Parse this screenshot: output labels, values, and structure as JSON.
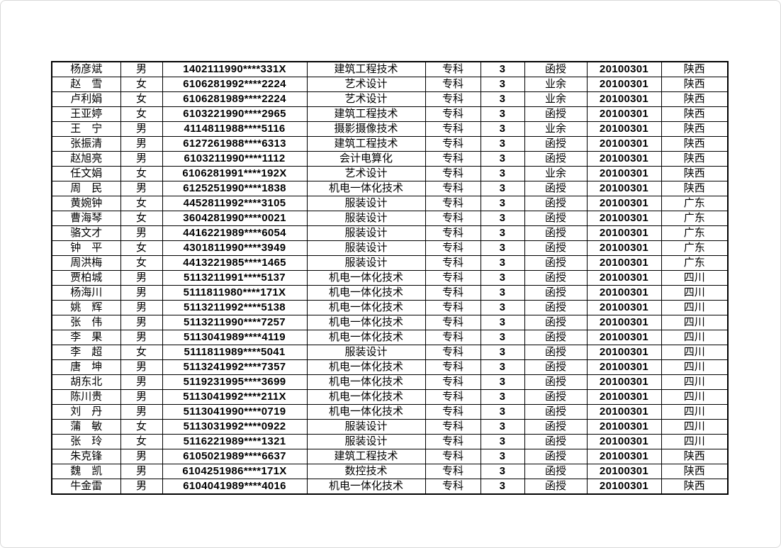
{
  "page": {
    "background_color": "#ffffff",
    "frame_border_color": "#d9d9d9",
    "table_border_color": "#000000",
    "text_color": "#000000"
  },
  "table": {
    "rows": [
      {
        "name": "杨彦斌",
        "gender": "男",
        "id_number": "1402111990****331X",
        "major": "建筑工程技术",
        "level": "专科",
        "years": "3",
        "study_mode": "函授",
        "date": "20100301",
        "province": "陕西"
      },
      {
        "name": "赵　雪",
        "gender": "女",
        "id_number": "6106281992****2224",
        "major": "艺术设计",
        "level": "专科",
        "years": "3",
        "study_mode": "业余",
        "date": "20100301",
        "province": "陕西"
      },
      {
        "name": "卢利娟",
        "gender": "女",
        "id_number": "6106281989****2224",
        "major": "艺术设计",
        "level": "专科",
        "years": "3",
        "study_mode": "业余",
        "date": "20100301",
        "province": "陕西"
      },
      {
        "name": "王亚婷",
        "gender": "女",
        "id_number": "6103221990****2965",
        "major": "建筑工程技术",
        "level": "专科",
        "years": "3",
        "study_mode": "函授",
        "date": "20100301",
        "province": "陕西"
      },
      {
        "name": "王　宁",
        "gender": "男",
        "id_number": "4114811988****5116",
        "major": "摄影摄像技术",
        "level": "专科",
        "years": "3",
        "study_mode": "业余",
        "date": "20100301",
        "province": "陕西"
      },
      {
        "name": "张振清",
        "gender": "男",
        "id_number": "6127261988****6313",
        "major": "建筑工程技术",
        "level": "专科",
        "years": "3",
        "study_mode": "函授",
        "date": "20100301",
        "province": "陕西"
      },
      {
        "name": "赵旭亮",
        "gender": "男",
        "id_number": "6103211990****1112",
        "major": "会计电算化",
        "level": "专科",
        "years": "3",
        "study_mode": "函授",
        "date": "20100301",
        "province": "陕西"
      },
      {
        "name": "任文娟",
        "gender": "女",
        "id_number": "6106281991****192X",
        "major": "艺术设计",
        "level": "专科",
        "years": "3",
        "study_mode": "业余",
        "date": "20100301",
        "province": "陕西"
      },
      {
        "name": "周　民",
        "gender": "男",
        "id_number": "6125251990****1838",
        "major": "机电一体化技术",
        "level": "专科",
        "years": "3",
        "study_mode": "函授",
        "date": "20100301",
        "province": "陕西"
      },
      {
        "name": "黄婉钟",
        "gender": "女",
        "id_number": "4452811992****3105",
        "major": "服装设计",
        "level": "专科",
        "years": "3",
        "study_mode": "函授",
        "date": "20100301",
        "province": "广东"
      },
      {
        "name": "曹海琴",
        "gender": "女",
        "id_number": "3604281990****0021",
        "major": "服装设计",
        "level": "专科",
        "years": "3",
        "study_mode": "函授",
        "date": "20100301",
        "province": "广东"
      },
      {
        "name": "骆文才",
        "gender": "男",
        "id_number": "4416221989****6054",
        "major": "服装设计",
        "level": "专科",
        "years": "3",
        "study_mode": "函授",
        "date": "20100301",
        "province": "广东"
      },
      {
        "name": "钟　平",
        "gender": "女",
        "id_number": "4301811990****3949",
        "major": "服装设计",
        "level": "专科",
        "years": "3",
        "study_mode": "函授",
        "date": "20100301",
        "province": "广东"
      },
      {
        "name": "周洪梅",
        "gender": "女",
        "id_number": "4413221985****1465",
        "major": "服装设计",
        "level": "专科",
        "years": "3",
        "study_mode": "函授",
        "date": "20100301",
        "province": "广东"
      },
      {
        "name": "贾柏城",
        "gender": "男",
        "id_number": "5113211991****5137",
        "major": "机电一体化技术",
        "level": "专科",
        "years": "3",
        "study_mode": "函授",
        "date": "20100301",
        "province": "四川"
      },
      {
        "name": "杨海川",
        "gender": "男",
        "id_number": "5111811980****171X",
        "major": "机电一体化技术",
        "level": "专科",
        "years": "3",
        "study_mode": "函授",
        "date": "20100301",
        "province": "四川"
      },
      {
        "name": "姚　辉",
        "gender": "男",
        "id_number": "5113211992****5138",
        "major": "机电一体化技术",
        "level": "专科",
        "years": "3",
        "study_mode": "函授",
        "date": "20100301",
        "province": "四川"
      },
      {
        "name": "张　伟",
        "gender": "男",
        "id_number": "5113211990****7257",
        "major": "机电一体化技术",
        "level": "专科",
        "years": "3",
        "study_mode": "函授",
        "date": "20100301",
        "province": "四川"
      },
      {
        "name": "李　果",
        "gender": "男",
        "id_number": "5113041989****4119",
        "major": "机电一体化技术",
        "level": "专科",
        "years": "3",
        "study_mode": "函授",
        "date": "20100301",
        "province": "四川"
      },
      {
        "name": "李　超",
        "gender": "女",
        "id_number": "5111811989****5041",
        "major": "服装设计",
        "level": "专科",
        "years": "3",
        "study_mode": "函授",
        "date": "20100301",
        "province": "四川"
      },
      {
        "name": "唐　坤",
        "gender": "男",
        "id_number": "5113241992****7357",
        "major": "机电一体化技术",
        "level": "专科",
        "years": "3",
        "study_mode": "函授",
        "date": "20100301",
        "province": "四川"
      },
      {
        "name": "胡东北",
        "gender": "男",
        "id_number": "5119231995****3699",
        "major": "机电一体化技术",
        "level": "专科",
        "years": "3",
        "study_mode": "函授",
        "date": "20100301",
        "province": "四川"
      },
      {
        "name": "陈川贵",
        "gender": "男",
        "id_number": "5113041992****211X",
        "major": "机电一体化技术",
        "level": "专科",
        "years": "3",
        "study_mode": "函授",
        "date": "20100301",
        "province": "四川"
      },
      {
        "name": "刘　丹",
        "gender": "男",
        "id_number": "5113041990****0719",
        "major": "机电一体化技术",
        "level": "专科",
        "years": "3",
        "study_mode": "函授",
        "date": "20100301",
        "province": "四川"
      },
      {
        "name": "蒲　敏",
        "gender": "女",
        "id_number": "5113031992****0922",
        "major": "服装设计",
        "level": "专科",
        "years": "3",
        "study_mode": "函授",
        "date": "20100301",
        "province": "四川"
      },
      {
        "name": "张　玲",
        "gender": "女",
        "id_number": "5116221989****1321",
        "major": "服装设计",
        "level": "专科",
        "years": "3",
        "study_mode": "函授",
        "date": "20100301",
        "province": "四川"
      },
      {
        "name": "朱克锋",
        "gender": "男",
        "id_number": "6105021989****6637",
        "major": "建筑工程技术",
        "level": "专科",
        "years": "3",
        "study_mode": "函授",
        "date": "20100301",
        "province": "陕西"
      },
      {
        "name": "魏　凯",
        "gender": "男",
        "id_number": "6104251986****171X",
        "major": "数控技术",
        "level": "专科",
        "years": "3",
        "study_mode": "函授",
        "date": "20100301",
        "province": "陕西"
      },
      {
        "name": "牛金雷",
        "gender": "男",
        "id_number": "6104041989****4016",
        "major": "机电一体化技术",
        "level": "专科",
        "years": "3",
        "study_mode": "函授",
        "date": "20100301",
        "province": "陕西"
      }
    ]
  }
}
